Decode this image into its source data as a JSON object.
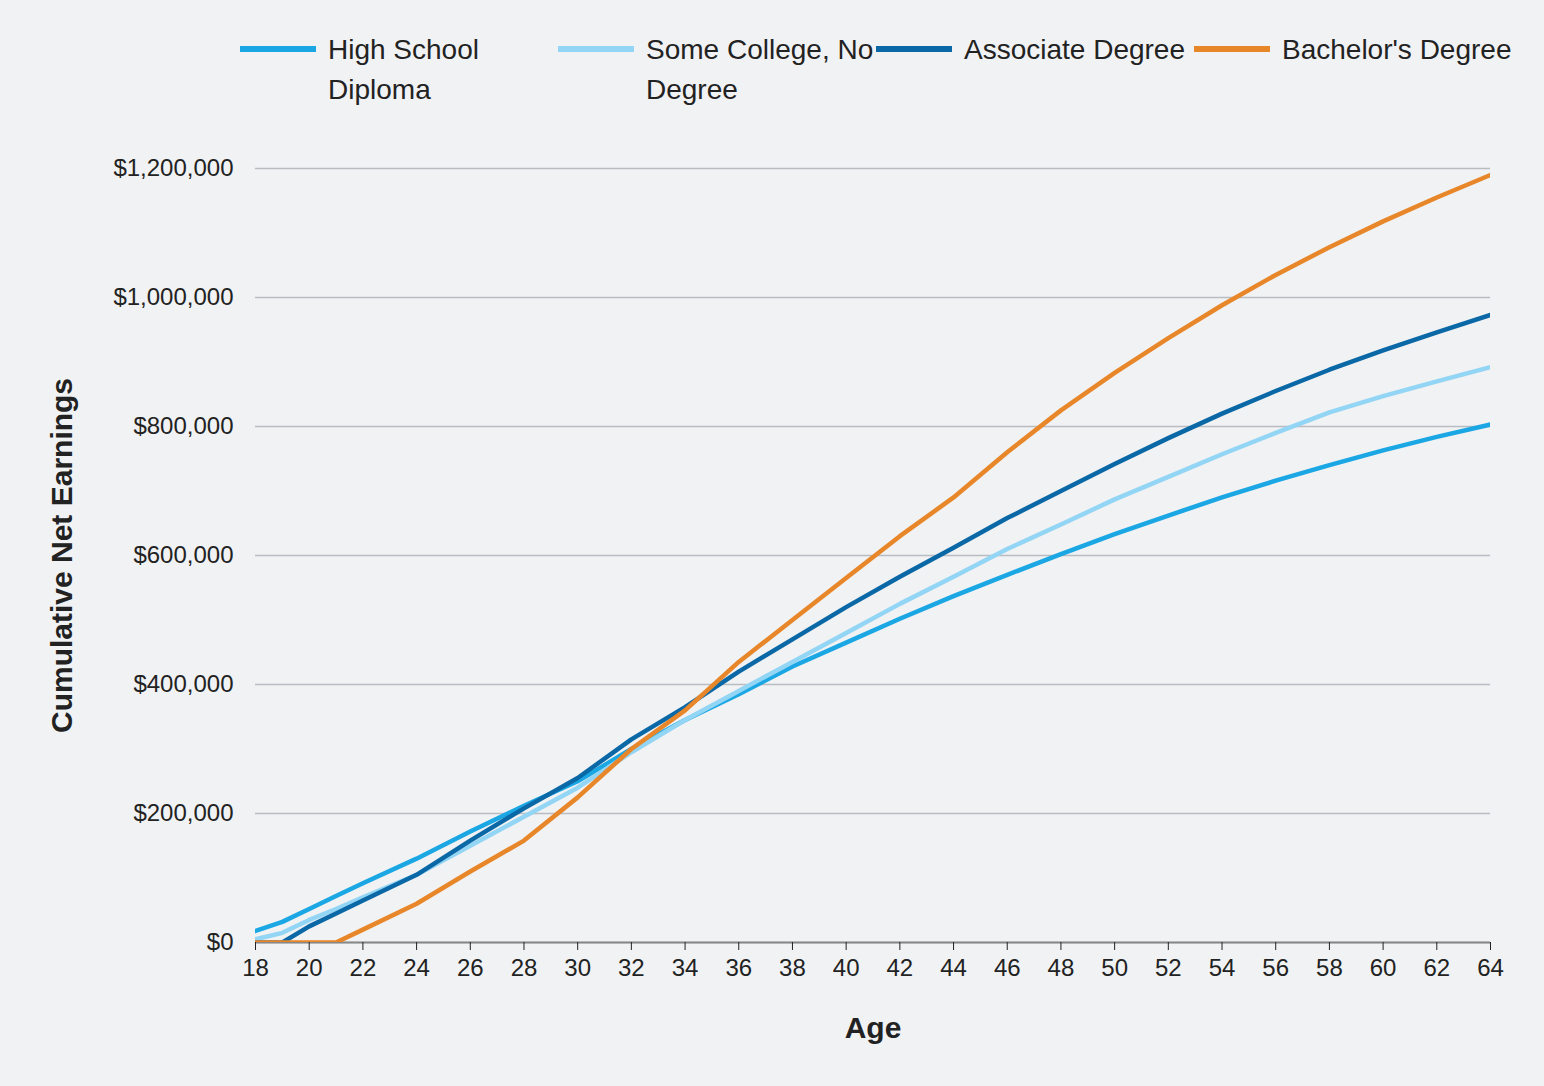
{
  "chart_data": {
    "type": "line",
    "x_label": "Age",
    "y_label": "Cumulative Net Earnings",
    "x": [
      18,
      19,
      20,
      21,
      22,
      24,
      26,
      28,
      30,
      32,
      34,
      36,
      38,
      40,
      42,
      44,
      46,
      48,
      50,
      52,
      54,
      56,
      58,
      60,
      62,
      64
    ],
    "series": [
      {
        "name": "High School Diploma",
        "color": "#1ba7e3",
        "values": [
          18000,
          32000,
          52000,
          72000,
          92000,
          130000,
          172000,
          212000,
          250000,
          300000,
          345000,
          385000,
          428000,
          465000,
          502000,
          537000,
          570000,
          602000,
          633000,
          662000,
          690000,
          716000,
          740000,
          763000,
          784000,
          803000
        ]
      },
      {
        "name": "Some College, No Degree",
        "color": "#93d5f4",
        "values": [
          5000,
          15000,
          35000,
          52000,
          70000,
          105000,
          150000,
          195000,
          240000,
          295000,
          345000,
          390000,
          435000,
          480000,
          525000,
          567000,
          610000,
          648000,
          687000,
          722000,
          757000,
          790000,
          822000,
          847000,
          870000,
          892000
        ]
      },
      {
        "name": "Associate Degree",
        "color": "#0b68a6",
        "values": [
          0,
          0,
          25000,
          45000,
          65000,
          105000,
          158000,
          208000,
          255000,
          315000,
          365000,
          420000,
          470000,
          520000,
          567000,
          612000,
          658000,
          700000,
          742000,
          782000,
          820000,
          855000,
          888000,
          918000,
          946000,
          973000
        ]
      },
      {
        "name": "Bachelor's Degree",
        "color": "#e8862a",
        "values": [
          0,
          0,
          0,
          0,
          20000,
          60000,
          110000,
          158000,
          225000,
          300000,
          360000,
          435000,
          500000,
          565000,
          630000,
          690000,
          760000,
          825000,
          883000,
          937000,
          988000,
          1035000,
          1078000,
          1118000,
          1155000,
          1190000
        ]
      }
    ],
    "xlim": [
      18,
      64
    ],
    "xticks": [
      18,
      20,
      22,
      24,
      26,
      28,
      30,
      32,
      34,
      36,
      38,
      40,
      42,
      44,
      46,
      48,
      50,
      52,
      54,
      56,
      58,
      60,
      62,
      64
    ],
    "ylim": [
      0,
      1200000
    ],
    "yticks": [
      {
        "value": 0,
        "label": "$0"
      },
      {
        "value": 200000,
        "label": "$200,000"
      },
      {
        "value": 400000,
        "label": "$400,000"
      },
      {
        "value": 600000,
        "label": "$600,000"
      },
      {
        "value": 800000,
        "label": "$800,000"
      },
      {
        "value": 1000000,
        "label": "$1,000,000"
      },
      {
        "value": 1200000,
        "label": "$1,200,000"
      }
    ],
    "grid": true,
    "legend": "top"
  }
}
